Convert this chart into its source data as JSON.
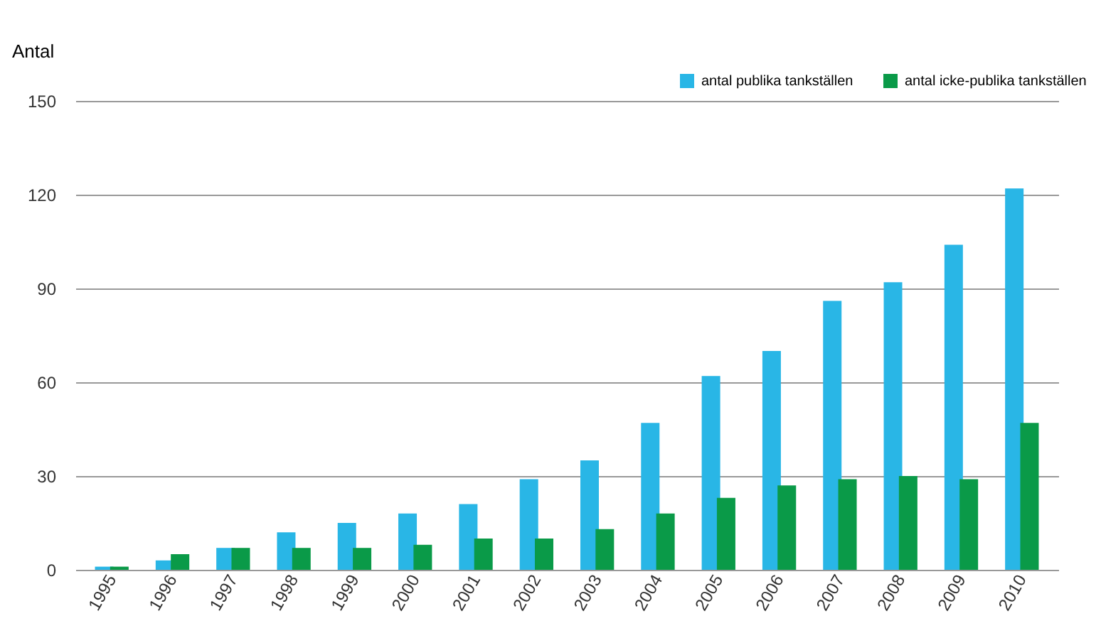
{
  "chart_data": {
    "type": "bar",
    "ylabel": "Antal",
    "categories": [
      "1995",
      "1996",
      "1997",
      "1998",
      "1999",
      "2000",
      "2001",
      "2002",
      "2003",
      "2004",
      "2005",
      "2006",
      "2007",
      "2008",
      "2009",
      "2010"
    ],
    "series": [
      {
        "name": "antal publika tankställen",
        "color": "#29b6e6",
        "values": [
          1,
          3,
          7,
          12,
          15,
          18,
          21,
          29,
          35,
          47,
          62,
          70,
          86,
          92,
          104,
          122
        ]
      },
      {
        "name": "antal icke-publika tankställen",
        "color": "#0a9a48",
        "values": [
          1,
          5,
          7,
          7,
          7,
          8,
          10,
          10,
          13,
          18,
          23,
          27,
          29,
          30,
          29,
          47
        ]
      }
    ],
    "ylim": [
      0,
      150
    ],
    "yticks": [
      0,
      30,
      60,
      90,
      120,
      150
    ],
    "grid": "y",
    "legend": "top right"
  }
}
